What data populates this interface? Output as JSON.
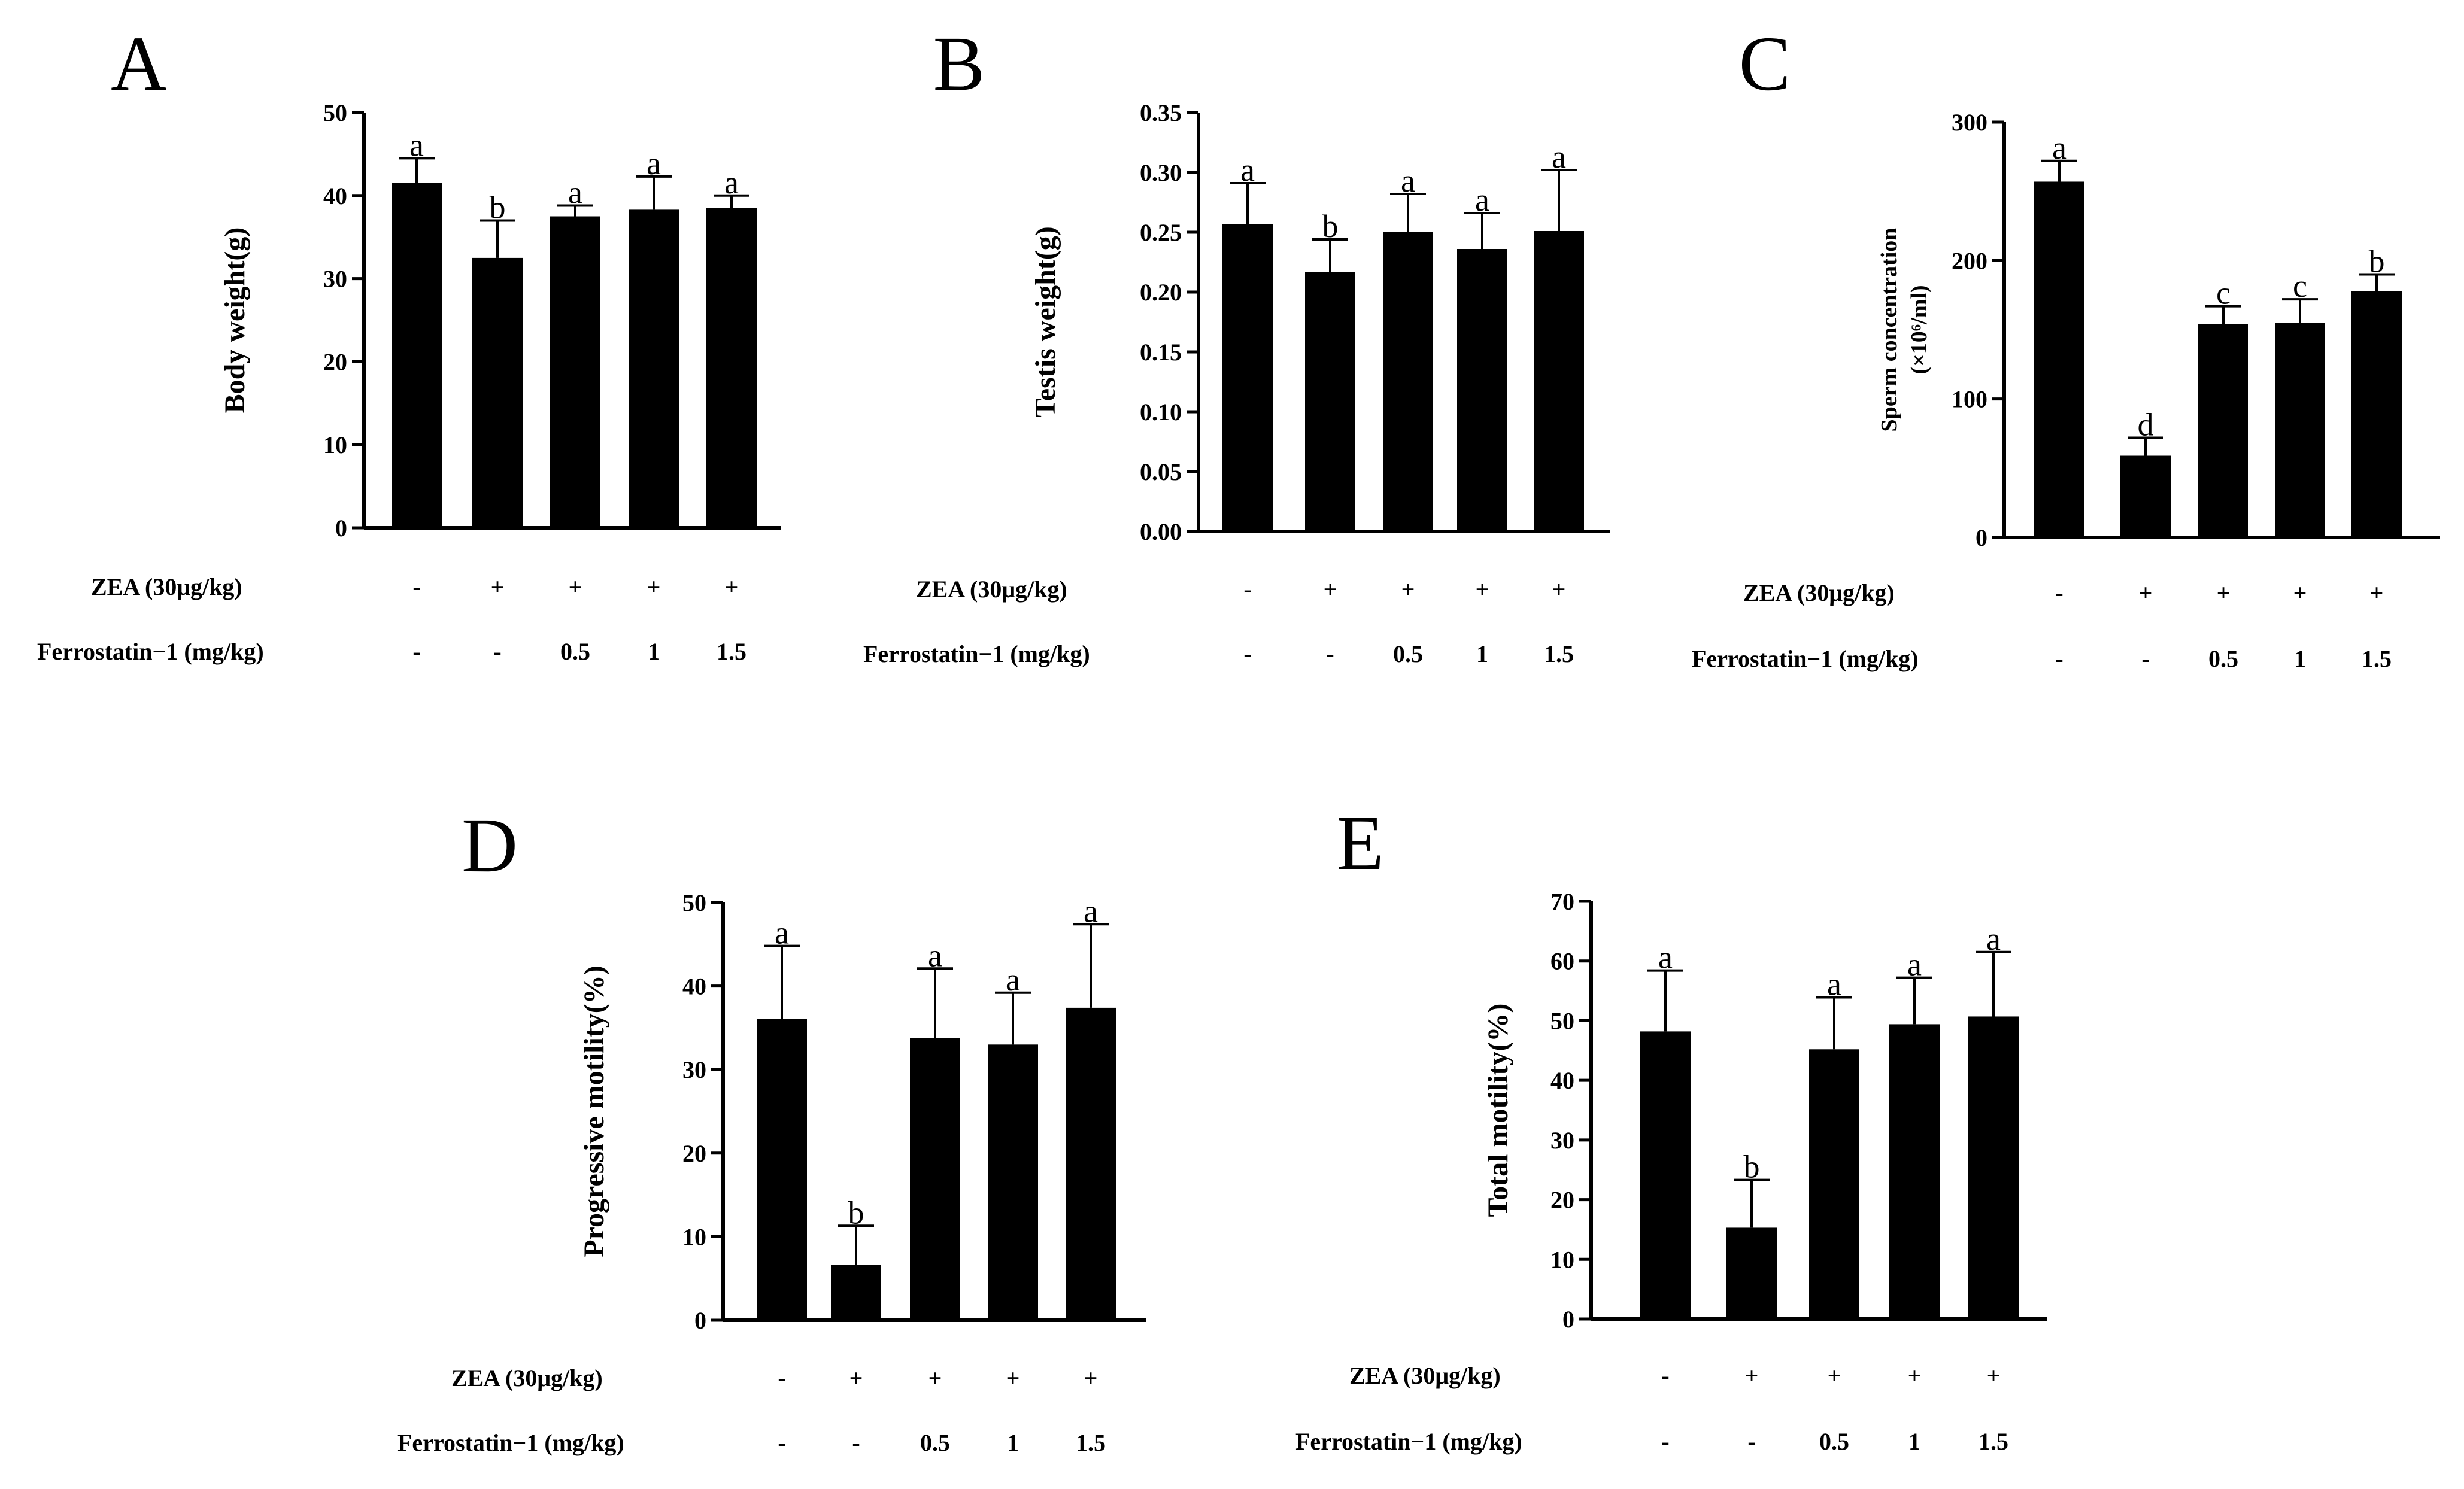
{
  "conditions": {
    "zea_label": "ZEA (30μg/kg)",
    "fer_label": "Ferrostatin−1 (mg/kg)",
    "zea": [
      "-",
      "+",
      "+",
      "+",
      "+"
    ],
    "fer": [
      "-",
      "-",
      "0.5",
      "1",
      "1.5"
    ]
  },
  "chart_data": [
    {
      "id": "A",
      "type": "bar",
      "letter": "A",
      "ylabel": "Body weight(g)",
      "ylabel2": "",
      "ylim": [
        0,
        50
      ],
      "yticks": [
        "0",
        "10",
        "20",
        "30",
        "40",
        "50"
      ],
      "values": [
        41.5,
        32.5,
        37.5,
        38.3,
        38.5
      ],
      "errors": [
        3,
        4.5,
        1.3,
        4,
        1.5
      ],
      "letters": [
        "a",
        "b",
        "a",
        "a",
        "a"
      ]
    },
    {
      "id": "B",
      "type": "bar",
      "letter": "B",
      "ylabel": "Testis weight(g)",
      "ylabel2": "",
      "ylim": [
        0,
        0.35
      ],
      "yticks": [
        "0.00",
        "0.05",
        "0.10",
        "0.15",
        "0.20",
        "0.25",
        "0.30",
        "0.35"
      ],
      "values": [
        0.257,
        0.217,
        0.25,
        0.236,
        0.251
      ],
      "errors": [
        0.034,
        0.027,
        0.032,
        0.03,
        0.051
      ],
      "letters": [
        "a",
        "b",
        "a",
        "a",
        "a"
      ]
    },
    {
      "id": "C",
      "type": "bar",
      "letter": "C",
      "ylabel": "Sperm concentration",
      "ylabel2": "(×10⁶/ml)",
      "ylim": [
        0,
        300
      ],
      "yticks": [
        "0",
        "100",
        "200",
        "300"
      ],
      "values": [
        257,
        59,
        154,
        155,
        178
      ],
      "errors": [
        15,
        13,
        13,
        17,
        12
      ],
      "letters": [
        "a",
        "d",
        "c",
        "c",
        "b"
      ]
    },
    {
      "id": "D",
      "type": "bar",
      "letter": "D",
      "ylabel": "Progressive motility(%)",
      "ylabel2": "",
      "ylim": [
        0,
        50
      ],
      "yticks": [
        "0",
        "10",
        "20",
        "30",
        "40",
        "50"
      ],
      "values": [
        36.1,
        6.6,
        33.8,
        33,
        37.4
      ],
      "errors": [
        8.7,
        4.7,
        8.3,
        6.2,
        10
      ],
      "letters": [
        "a",
        "b",
        "a",
        "a",
        "a"
      ]
    },
    {
      "id": "E",
      "type": "bar",
      "letter": "E",
      "ylabel": "Total motility(%)",
      "ylabel2": "",
      "ylim": [
        0,
        70
      ],
      "yticks": [
        "0",
        "10",
        "20",
        "30",
        "40",
        "50",
        "60",
        "70"
      ],
      "values": [
        48.2,
        15.3,
        45.2,
        49.4,
        50.7
      ],
      "errors": [
        10.2,
        8,
        8.7,
        7.8,
        10.8
      ],
      "letters": [
        "a",
        "b",
        "a",
        "a",
        "a"
      ]
    }
  ]
}
